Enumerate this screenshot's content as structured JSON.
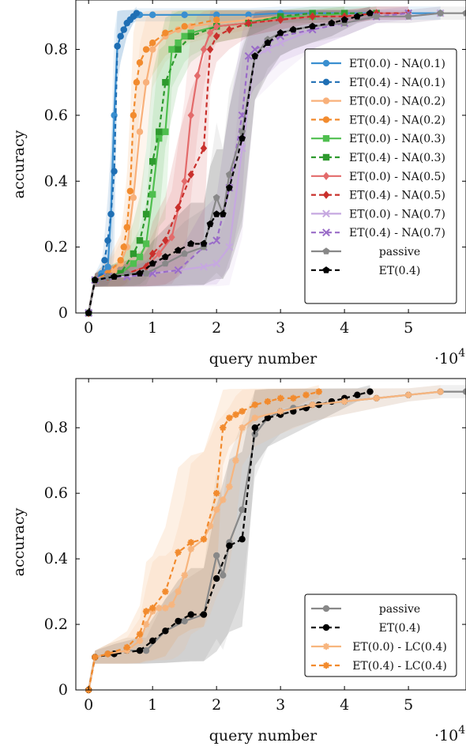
{
  "chart_data": [
    {
      "type": "line",
      "xlabel": "query number",
      "ylabel": "accuracy",
      "x_multiplier_label": "·10^4",
      "xlim": [
        -0.2,
        5.9
      ],
      "ylim": [
        0,
        0.95
      ],
      "xticks": [
        "0",
        "1",
        "2",
        "3",
        "4",
        "5"
      ],
      "yticks": [
        "0",
        "0.2",
        "0.4",
        "0.6",
        "0.8"
      ],
      "legend_position": "right",
      "series": [
        {
          "name": "ET(0.0) - NA(0.1)",
          "color": "#3a8fd0",
          "dash": false,
          "marker": "circle",
          "x": [
            0,
            0.1,
            0.2,
            0.3,
            0.35,
            0.4,
            0.45,
            0.5,
            0.55,
            0.6,
            0.65,
            0.7,
            0.75,
            0.8,
            1.0,
            1.5,
            2.0,
            2.5,
            3.0,
            3.5,
            4.0,
            4.5,
            5.0,
            5.5
          ],
          "y": [
            0,
            0.1,
            0.12,
            0.14,
            0.3,
            0.6,
            0.81,
            0.84,
            0.86,
            0.88,
            0.89,
            0.9,
            0.905,
            0.905,
            0.905,
            0.905,
            0.905,
            0.905,
            0.91,
            0.91,
            0.91,
            0.91,
            0.91,
            0.91
          ]
        },
        {
          "name": "ET(0.4) - NA(0.1)",
          "color": "#1f6fb4",
          "dash": true,
          "marker": "circle",
          "x": [
            0,
            0.1,
            0.2,
            0.25,
            0.3,
            0.35,
            0.4,
            0.45,
            0.5,
            0.55,
            0.6,
            0.65,
            0.7,
            0.75
          ],
          "y": [
            0,
            0.1,
            0.11,
            0.16,
            0.22,
            0.3,
            0.43,
            0.81,
            0.84,
            0.86,
            0.88,
            0.89,
            0.9,
            0.91
          ]
        },
        {
          "name": "ET(0.0) - NA(0.2)",
          "color": "#f8b07a",
          "dash": false,
          "marker": "circle",
          "x": [
            0,
            0.1,
            0.3,
            0.4,
            0.5,
            0.6,
            0.7,
            0.8,
            0.9,
            1.0,
            1.2,
            1.4,
            1.6,
            2.0,
            2.5,
            3.0,
            3.5,
            4.0
          ],
          "y": [
            0,
            0.1,
            0.12,
            0.13,
            0.15,
            0.2,
            0.35,
            0.55,
            0.7,
            0.8,
            0.84,
            0.86,
            0.87,
            0.88,
            0.89,
            0.9,
            0.9,
            0.91
          ]
        },
        {
          "name": "ET(0.4) - NA(0.2)",
          "color": "#f28b2e",
          "dash": true,
          "marker": "circle",
          "x": [
            0,
            0.1,
            0.3,
            0.5,
            0.55,
            0.6,
            0.65,
            0.7,
            0.75,
            0.8,
            0.9,
            1.0,
            1.2,
            1.5,
            2.0
          ],
          "y": [
            0,
            0.1,
            0.12,
            0.16,
            0.2,
            0.26,
            0.37,
            0.6,
            0.7,
            0.76,
            0.8,
            0.82,
            0.85,
            0.87,
            0.89
          ]
        },
        {
          "name": "ET(0.0) - NA(0.3)",
          "color": "#4fbf4f",
          "dash": false,
          "marker": "square",
          "x": [
            0,
            0.1,
            0.3,
            0.5,
            0.7,
            0.8,
            0.9,
            1.0,
            1.1,
            1.2,
            1.3,
            1.4,
            1.5,
            1.6,
            2.0,
            2.5,
            3.0,
            3.5,
            4.0
          ],
          "y": [
            0,
            0.1,
            0.11,
            0.12,
            0.15,
            0.17,
            0.21,
            0.36,
            0.53,
            0.55,
            0.8,
            0.82,
            0.84,
            0.85,
            0.87,
            0.88,
            0.9,
            0.9,
            0.91
          ]
        },
        {
          "name": "ET(0.4) - NA(0.3)",
          "color": "#2e9a2e",
          "dash": true,
          "marker": "square",
          "x": [
            0,
            0.1,
            0.3,
            0.5,
            0.7,
            0.8,
            0.9,
            1.0,
            1.1,
            1.2,
            1.4,
            1.6,
            2.0,
            2.5,
            3.0,
            3.5,
            4.0,
            4.5
          ],
          "y": [
            0,
            0.1,
            0.11,
            0.12,
            0.18,
            0.22,
            0.3,
            0.46,
            0.55,
            0.7,
            0.8,
            0.84,
            0.87,
            0.88,
            0.9,
            0.91,
            0.91,
            0.91
          ]
        },
        {
          "name": "ET(0.0) - NA(0.5)",
          "color": "#e36b6b",
          "dash": false,
          "marker": "diamond",
          "x": [
            0,
            0.1,
            0.3,
            0.6,
            0.9,
            1.1,
            1.3,
            1.5,
            1.6,
            1.7,
            1.8,
            1.9,
            2.0,
            2.5,
            3.0,
            3.5,
            4.0,
            4.5,
            5.0
          ],
          "y": [
            0,
            0.1,
            0.11,
            0.12,
            0.14,
            0.18,
            0.23,
            0.4,
            0.6,
            0.72,
            0.8,
            0.85,
            0.87,
            0.88,
            0.89,
            0.9,
            0.9,
            0.91,
            0.91
          ]
        },
        {
          "name": "ET(0.4) - NA(0.5)",
          "color": "#c9302c",
          "dash": true,
          "marker": "diamond",
          "x": [
            0,
            0.1,
            0.3,
            0.6,
            0.9,
            1.0,
            1.2,
            1.4,
            1.6,
            1.8,
            1.9,
            2.0,
            2.2,
            2.5,
            3.0,
            3.5,
            4.0,
            4.5,
            5.0
          ],
          "y": [
            0,
            0.1,
            0.11,
            0.12,
            0.14,
            0.18,
            0.22,
            0.32,
            0.42,
            0.5,
            0.8,
            0.84,
            0.86,
            0.88,
            0.89,
            0.9,
            0.9,
            0.91,
            0.91
          ]
        },
        {
          "name": "ET(0.0) - NA(0.7)",
          "color": "#c6a8e0",
          "dash": false,
          "marker": "x",
          "x": [
            0,
            0.1,
            0.3,
            0.6,
            1.0,
            1.4,
            1.8,
            2.0,
            2.2,
            2.4,
            2.6,
            2.8,
            3.0,
            3.5,
            4.0,
            4.5,
            5.0,
            5.5
          ],
          "y": [
            0,
            0.1,
            0.11,
            0.11,
            0.12,
            0.13,
            0.14,
            0.15,
            0.2,
            0.5,
            0.78,
            0.8,
            0.82,
            0.86,
            0.88,
            0.9,
            0.9,
            0.91
          ]
        },
        {
          "name": "ET(0.4) - NA(0.7)",
          "color": "#9a6cc8",
          "dash": true,
          "marker": "x",
          "x": [
            0,
            0.1,
            0.3,
            0.6,
            1.0,
            1.4,
            1.8,
            2.0,
            2.2,
            2.4,
            2.5,
            2.6,
            2.8,
            3.0,
            3.5,
            4.0,
            4.5,
            5.0
          ],
          "y": [
            0,
            0.1,
            0.11,
            0.11,
            0.12,
            0.13,
            0.2,
            0.22,
            0.38,
            0.6,
            0.78,
            0.8,
            0.82,
            0.84,
            0.86,
            0.88,
            0.9,
            0.91
          ]
        },
        {
          "name": "passive",
          "color": "#888888",
          "dash": false,
          "marker": "pentagon",
          "x": [
            0,
            0.1,
            0.3,
            0.6,
            0.9,
            1.2,
            1.5,
            1.8,
            2.0,
            2.1,
            2.2,
            2.4,
            2.6,
            2.8,
            3.0,
            3.2,
            3.5,
            4.0,
            4.5,
            5.0,
            5.5,
            5.9
          ],
          "y": [
            0,
            0.1,
            0.11,
            0.12,
            0.12,
            0.15,
            0.18,
            0.2,
            0.35,
            0.3,
            0.42,
            0.55,
            0.78,
            0.83,
            0.85,
            0.86,
            0.87,
            0.88,
            0.9,
            0.9,
            0.91,
            0.91
          ]
        },
        {
          "name": "ET(0.4)",
          "color": "#000000",
          "dash": true,
          "marker": "pentagon",
          "x": [
            0,
            0.1,
            0.4,
            0.8,
            1.0,
            1.2,
            1.4,
            1.6,
            1.8,
            1.9,
            2.0,
            2.1,
            2.2,
            2.4,
            2.6,
            2.8,
            3.0,
            3.2,
            3.5,
            3.8,
            4.0,
            4.2,
            4.4
          ],
          "y": [
            0,
            0.1,
            0.11,
            0.12,
            0.15,
            0.17,
            0.19,
            0.21,
            0.21,
            0.27,
            0.3,
            0.3,
            0.38,
            0.53,
            0.78,
            0.82,
            0.85,
            0.86,
            0.87,
            0.88,
            0.89,
            0.9,
            0.91
          ]
        }
      ]
    },
    {
      "type": "line",
      "xlabel": "query number",
      "ylabel": "accuracy",
      "x_multiplier_label": "·10^4",
      "xlim": [
        -0.2,
        5.9
      ],
      "ylim": [
        0,
        0.95
      ],
      "xticks": [
        "0",
        "1",
        "2",
        "3",
        "4",
        "5"
      ],
      "yticks": [
        "0",
        "0.2",
        "0.4",
        "0.6",
        "0.8"
      ],
      "legend_position": "bottom-right",
      "series": [
        {
          "name": "passive",
          "color": "#888888",
          "dash": false,
          "marker": "circle",
          "x": [
            0,
            0.1,
            0.3,
            0.6,
            0.9,
            1.2,
            1.5,
            1.8,
            2.0,
            2.1,
            2.2,
            2.4,
            2.6,
            2.8,
            3.0,
            3.2,
            3.5,
            4.0,
            4.5,
            5.0,
            5.5,
            5.9
          ],
          "y": [
            0,
            0.1,
            0.11,
            0.12,
            0.12,
            0.18,
            0.21,
            0.23,
            0.41,
            0.35,
            0.45,
            0.55,
            0.78,
            0.83,
            0.85,
            0.86,
            0.87,
            0.88,
            0.89,
            0.9,
            0.91,
            0.91
          ]
        },
        {
          "name": "ET(0.4)",
          "color": "#000000",
          "dash": true,
          "marker": "circle",
          "x": [
            0,
            0.1,
            0.4,
            0.8,
            1.0,
            1.2,
            1.4,
            1.6,
            1.8,
            2.0,
            2.2,
            2.4,
            2.6,
            2.8,
            3.0,
            3.2,
            3.4,
            3.6,
            3.8,
            4.0,
            4.2,
            4.4
          ],
          "y": [
            0,
            0.1,
            0.11,
            0.12,
            0.15,
            0.18,
            0.21,
            0.23,
            0.23,
            0.34,
            0.44,
            0.46,
            0.8,
            0.83,
            0.84,
            0.85,
            0.86,
            0.87,
            0.88,
            0.89,
            0.9,
            0.91
          ]
        },
        {
          "name": "ET(0.0) - LC(0.4)",
          "color": "#f7b57e",
          "dash": false,
          "marker": "star",
          "x": [
            0,
            0.1,
            0.3,
            0.6,
            0.8,
            0.9,
            1.0,
            1.1,
            1.2,
            1.3,
            1.4,
            1.5,
            1.6,
            1.8,
            1.9,
            2.0,
            2.1,
            2.2,
            2.3,
            2.4,
            2.6,
            3.0,
            3.5,
            4.0,
            4.5,
            5.0,
            5.5
          ],
          "y": [
            0,
            0.1,
            0.11,
            0.12,
            0.15,
            0.2,
            0.24,
            0.25,
            0.25,
            0.26,
            0.3,
            0.35,
            0.43,
            0.46,
            0.5,
            0.55,
            0.58,
            0.62,
            0.7,
            0.8,
            0.83,
            0.85,
            0.87,
            0.88,
            0.89,
            0.9,
            0.91
          ]
        },
        {
          "name": "ET(0.4) - LC(0.4)",
          "color": "#f28b2e",
          "dash": true,
          "marker": "star",
          "x": [
            0,
            0.1,
            0.3,
            0.6,
            0.8,
            0.9,
            1.0,
            1.2,
            1.4,
            1.6,
            1.8,
            2.0,
            2.1,
            2.2,
            2.3,
            2.4,
            2.6,
            2.8,
            3.0,
            3.2,
            3.4,
            3.6
          ],
          "y": [
            0,
            0.1,
            0.11,
            0.13,
            0.17,
            0.24,
            0.25,
            0.3,
            0.42,
            0.45,
            0.46,
            0.6,
            0.8,
            0.83,
            0.84,
            0.85,
            0.87,
            0.88,
            0.89,
            0.89,
            0.9,
            0.91
          ]
        }
      ]
    }
  ]
}
